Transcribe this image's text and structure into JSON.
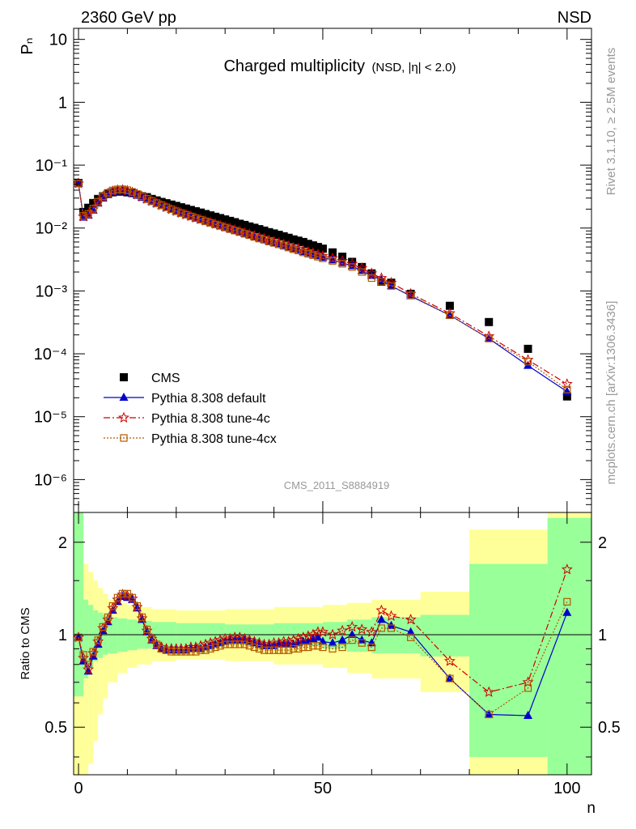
{
  "header": {
    "left": "2360 GeV pp",
    "right": "NSD",
    "title_main": "Charged multiplicity",
    "title_sub": "(NSD, |η| < 2.0)",
    "side_top": "Rivet 3.1.10, ≥ 2.5M events",
    "side_bottom": "mcplots.cern.ch [arXiv:1306.3436]",
    "watermark": "CMS_2011_S8884919"
  },
  "chart_data": [
    {
      "type": "scatter",
      "panel": "main",
      "ylabel": "Pₙ",
      "yscale": "log",
      "ylim": [
        3e-07,
        15
      ],
      "xlim": [
        -1,
        105
      ],
      "y_tick_labels": [
        "10",
        "1",
        "10⁻¹",
        "10⁻²",
        "10⁻³",
        "10⁻⁴",
        "10⁻⁵",
        "10⁻⁶"
      ],
      "legend_position": "bottom-left",
      "series": [
        {
          "name": "CMS",
          "color": "#000000",
          "marker": "square",
          "x": [
            0,
            1,
            2,
            3,
            4,
            5,
            6,
            7,
            8,
            9,
            10,
            11,
            12,
            13,
            14,
            15,
            16,
            17,
            18,
            19,
            20,
            21,
            22,
            23,
            24,
            25,
            26,
            27,
            28,
            29,
            30,
            31,
            32,
            33,
            34,
            35,
            36,
            37,
            38,
            39,
            40,
            41,
            42,
            43,
            44,
            45,
            46,
            47,
            48,
            49,
            50,
            52,
            54,
            56,
            58,
            60,
            62,
            64,
            68,
            76,
            84,
            92,
            100
          ],
          "y": [
            0.052,
            0.018,
            0.021,
            0.025,
            0.029,
            0.032,
            0.035,
            0.037,
            0.038,
            0.038,
            0.037,
            0.036,
            0.034,
            0.032,
            0.031,
            0.029,
            0.0275,
            0.026,
            0.0248,
            0.0236,
            0.0225,
            0.0214,
            0.0204,
            0.0194,
            0.0185,
            0.0176,
            0.0167,
            0.0159,
            0.0151,
            0.0144,
            0.0137,
            0.013,
            0.0124,
            0.0117,
            0.0112,
            0.0106,
            0.0101,
            0.0096,
            0.0091,
            0.0086,
            0.0082,
            0.0078,
            0.0074,
            0.007,
            0.0066,
            0.0063,
            0.006,
            0.0056,
            0.0053,
            0.005,
            0.0047,
            0.0041,
            0.0035,
            0.0029,
            0.0024,
            0.0019,
            0.0014,
            0.00135,
            0.0009,
            0.00058,
            0.00032,
            0.00012,
            2.1e-05
          ]
        },
        {
          "name": "Pythia 8.308 default",
          "color": "#0000cc",
          "marker": "triangle",
          "line": "solid",
          "x": [
            0,
            1,
            2,
            3,
            4,
            5,
            6,
            7,
            8,
            9,
            10,
            11,
            12,
            13,
            14,
            15,
            16,
            17,
            18,
            19,
            20,
            21,
            22,
            23,
            24,
            25,
            26,
            27,
            28,
            29,
            30,
            31,
            32,
            33,
            34,
            35,
            36,
            37,
            38,
            39,
            40,
            41,
            42,
            43,
            44,
            45,
            46,
            47,
            48,
            49,
            50,
            52,
            54,
            56,
            58,
            60,
            62,
            64,
            68,
            76,
            84,
            92,
            100
          ],
          "y": [
            0.051,
            0.0148,
            0.016,
            0.0192,
            0.0248,
            0.0298,
            0.0338,
            0.0368,
            0.0384,
            0.0388,
            0.0378,
            0.0358,
            0.0332,
            0.0305,
            0.0283,
            0.0262,
            0.0243,
            0.0226,
            0.021,
            0.0196,
            0.0183,
            0.0171,
            0.0161,
            0.0152,
            0.0143,
            0.0135,
            0.0128,
            0.0121,
            0.0114,
            0.0108,
            0.0102,
            0.0097,
            0.0092,
            0.0087,
            0.0082,
            0.0078,
            0.0073,
            0.0069,
            0.0066,
            0.0062,
            0.0059,
            0.0056,
            0.0053,
            0.005,
            0.0047,
            0.0045,
            0.0042,
            0.004,
            0.0038,
            0.0036,
            0.0034,
            0.0031,
            0.0028,
            0.0025,
            0.0021,
            0.00175,
            0.0015,
            0.0012,
            0.00083,
            0.00041,
            0.000175,
            6.5e-05,
            2.5e-05
          ]
        },
        {
          "name": "Pythia 8.308 tune-4c",
          "color": "#cc0000",
          "marker": "star",
          "line": "dashdot",
          "x": [
            0,
            1,
            2,
            3,
            4,
            5,
            6,
            7,
            8,
            9,
            10,
            11,
            12,
            13,
            14,
            15,
            16,
            17,
            18,
            19,
            20,
            21,
            22,
            23,
            24,
            25,
            26,
            27,
            28,
            29,
            30,
            31,
            32,
            33,
            34,
            35,
            36,
            37,
            38,
            39,
            40,
            41,
            42,
            43,
            44,
            45,
            46,
            47,
            48,
            49,
            50,
            52,
            54,
            56,
            58,
            60,
            62,
            64,
            68,
            76,
            84,
            92,
            100
          ],
          "y": [
            0.051,
            0.0152,
            0.0165,
            0.0198,
            0.0258,
            0.0312,
            0.0356,
            0.0385,
            0.0401,
            0.0404,
            0.0392,
            0.0369,
            0.0343,
            0.0314,
            0.029,
            0.0268,
            0.0248,
            0.023,
            0.0213,
            0.0198,
            0.0185,
            0.0173,
            0.0163,
            0.0154,
            0.0145,
            0.0137,
            0.013,
            0.0123,
            0.0116,
            0.011,
            0.0104,
            0.0099,
            0.0094,
            0.0089,
            0.0084,
            0.008,
            0.0075,
            0.0071,
            0.0068,
            0.0064,
            0.0061,
            0.0058,
            0.0055,
            0.0052,
            0.0049,
            0.0047,
            0.0044,
            0.0042,
            0.004,
            0.0038,
            0.0036,
            0.0033,
            0.003,
            0.0027,
            0.0023,
            0.0019,
            0.0016,
            0.00135,
            0.0009,
            0.00044,
            0.00019,
            8e-05,
            3.3e-05
          ]
        },
        {
          "name": "Pythia 8.308 tune-4cx",
          "color": "#b35900",
          "marker": "open-square",
          "line": "dotted",
          "x": [
            0,
            1,
            2,
            3,
            4,
            5,
            6,
            7,
            8,
            9,
            10,
            11,
            12,
            13,
            14,
            15,
            16,
            17,
            18,
            19,
            20,
            21,
            22,
            23,
            24,
            25,
            26,
            27,
            28,
            29,
            30,
            31,
            32,
            33,
            34,
            35,
            36,
            37,
            38,
            39,
            40,
            41,
            42,
            43,
            44,
            45,
            46,
            47,
            48,
            49,
            50,
            52,
            54,
            56,
            58,
            60,
            62,
            64,
            68,
            76,
            84,
            92,
            100
          ],
          "y": [
            0.051,
            0.0156,
            0.0168,
            0.0203,
            0.0262,
            0.0318,
            0.0364,
            0.0396,
            0.0412,
            0.0414,
            0.04,
            0.0376,
            0.0347,
            0.0318,
            0.0292,
            0.027,
            0.0249,
            0.0231,
            0.0214,
            0.0199,
            0.0185,
            0.0173,
            0.0163,
            0.0153,
            0.0144,
            0.0136,
            0.0128,
            0.0121,
            0.0114,
            0.0108,
            0.0102,
            0.0096,
            0.0091,
            0.0086,
            0.0081,
            0.0077,
            0.0072,
            0.0068,
            0.0065,
            0.0061,
            0.0058,
            0.0055,
            0.0052,
            0.0049,
            0.0046,
            0.0044,
            0.0041,
            0.0039,
            0.0037,
            0.0035,
            0.0033,
            0.003,
            0.0027,
            0.0024,
            0.002,
            0.0016,
            0.0014,
            0.0012,
            0.00085,
            0.00041,
            0.000175,
            7.5e-05,
            2.7e-05
          ]
        }
      ]
    },
    {
      "type": "scatter",
      "panel": "ratio",
      "xlabel": "n",
      "ylabel": "Ratio to CMS",
      "yscale": "log",
      "ylim": [
        0.35,
        2.5
      ],
      "xlim": [
        -1,
        105
      ],
      "x_tick_labels": [
        "0",
        "50",
        "100"
      ],
      "y_tick_labels": [
        "0.5",
        "1",
        "2"
      ],
      "uncertainty_bands": {
        "color_inner": "#99ff99",
        "color_outer": "#ffff99",
        "x_edges": [
          -1,
          1,
          2,
          3,
          4,
          5,
          6,
          8,
          10,
          12,
          15,
          20,
          30,
          40,
          50,
          55,
          60,
          70,
          80,
          96,
          105
        ],
        "inner_lo": [
          0.63,
          0.72,
          0.78,
          0.82,
          0.84,
          0.86,
          0.87,
          0.88,
          0.89,
          0.9,
          0.91,
          0.92,
          0.93,
          0.92,
          0.9,
          0.88,
          0.87,
          0.85,
          0.4,
          0.3
        ],
        "inner_hi": [
          2.6,
          1.3,
          1.25,
          1.2,
          1.18,
          1.16,
          1.14,
          1.13,
          1.12,
          1.11,
          1.1,
          1.09,
          1.08,
          1.09,
          1.1,
          1.12,
          1.14,
          1.16,
          1.7,
          2.4
        ],
        "outer_lo": [
          0.35,
          0.35,
          0.38,
          0.45,
          0.55,
          0.62,
          0.7,
          0.75,
          0.78,
          0.8,
          0.82,
          0.83,
          0.82,
          0.8,
          0.78,
          0.75,
          0.72,
          0.65,
          0.35,
          0.3
        ],
        "outer_hi": [
          2.6,
          1.7,
          1.6,
          1.5,
          1.42,
          1.36,
          1.3,
          1.27,
          1.25,
          1.23,
          1.21,
          1.2,
          1.21,
          1.23,
          1.25,
          1.27,
          1.3,
          1.38,
          2.2,
          2.6
        ]
      },
      "series": [
        {
          "name": "Pythia 8.308 default",
          "color": "#0000cc",
          "marker": "triangle",
          "line": "solid",
          "x": [
            0,
            1,
            2,
            3,
            4,
            5,
            6,
            7,
            8,
            9,
            10,
            11,
            12,
            13,
            14,
            15,
            16,
            17,
            18,
            19,
            20,
            21,
            22,
            23,
            24,
            25,
            26,
            27,
            28,
            29,
            30,
            31,
            32,
            33,
            34,
            35,
            36,
            37,
            38,
            39,
            40,
            41,
            42,
            43,
            44,
            45,
            46,
            47,
            48,
            49,
            50,
            52,
            54,
            56,
            58,
            60,
            62,
            64,
            68,
            76,
            84,
            92,
            100
          ],
          "y": [
            0.98,
            0.82,
            0.76,
            0.85,
            0.93,
            1.03,
            1.1,
            1.2,
            1.28,
            1.33,
            1.32,
            1.3,
            1.22,
            1.12,
            1.02,
            0.96,
            0.92,
            0.9,
            0.89,
            0.89,
            0.89,
            0.89,
            0.89,
            0.9,
            0.9,
            0.9,
            0.91,
            0.92,
            0.93,
            0.94,
            0.95,
            0.96,
            0.96,
            0.96,
            0.96,
            0.95,
            0.94,
            0.93,
            0.92,
            0.92,
            0.92,
            0.93,
            0.93,
            0.93,
            0.93,
            0.94,
            0.95,
            0.95,
            0.97,
            0.98,
            0.95,
            0.94,
            0.96,
            1.0,
            0.96,
            0.94,
            1.12,
            1.07,
            1.02,
            0.72,
            0.55,
            0.545,
            1.18
          ]
        },
        {
          "name": "Pythia 8.308 tune-4c",
          "color": "#cc0000",
          "marker": "star",
          "line": "dashdot",
          "x": [
            0,
            1,
            2,
            3,
            4,
            5,
            6,
            7,
            8,
            9,
            10,
            11,
            12,
            13,
            14,
            15,
            16,
            17,
            18,
            19,
            20,
            21,
            22,
            23,
            24,
            25,
            26,
            27,
            28,
            29,
            30,
            31,
            32,
            33,
            34,
            35,
            36,
            37,
            38,
            39,
            40,
            41,
            42,
            43,
            44,
            45,
            46,
            47,
            48,
            49,
            50,
            52,
            54,
            56,
            58,
            60,
            62,
            64,
            68,
            76,
            84,
            92,
            100
          ],
          "y": [
            0.98,
            0.84,
            0.77,
            0.87,
            0.95,
            1.05,
            1.12,
            1.22,
            1.3,
            1.35,
            1.34,
            1.31,
            1.23,
            1.13,
            1.03,
            0.97,
            0.93,
            0.91,
            0.9,
            0.9,
            0.9,
            0.9,
            0.9,
            0.91,
            0.91,
            0.92,
            0.93,
            0.94,
            0.95,
            0.96,
            0.97,
            0.97,
            0.98,
            0.98,
            0.97,
            0.96,
            0.95,
            0.94,
            0.93,
            0.93,
            0.94,
            0.94,
            0.95,
            0.95,
            0.96,
            0.97,
            0.98,
            0.99,
            1.0,
            1.02,
            1.02,
            1.0,
            1.03,
            1.06,
            1.04,
            1.02,
            1.2,
            1.15,
            1.12,
            0.82,
            0.65,
            0.7,
            1.63
          ]
        },
        {
          "name": "Pythia 8.308 tune-4cx",
          "color": "#b35900",
          "marker": "open-square",
          "line": "dotted",
          "x": [
            0,
            1,
            2,
            3,
            4,
            5,
            6,
            7,
            8,
            9,
            10,
            11,
            12,
            13,
            14,
            15,
            16,
            17,
            18,
            19,
            20,
            21,
            22,
            23,
            24,
            25,
            26,
            27,
            28,
            29,
            30,
            31,
            32,
            33,
            34,
            35,
            36,
            37,
            38,
            39,
            40,
            41,
            42,
            43,
            44,
            45,
            46,
            47,
            48,
            49,
            50,
            52,
            54,
            56,
            58,
            60,
            62,
            64,
            68,
            76,
            84,
            92,
            100
          ],
          "y": [
            0.98,
            0.86,
            0.8,
            0.88,
            0.96,
            1.06,
            1.14,
            1.24,
            1.32,
            1.36,
            1.36,
            1.32,
            1.24,
            1.14,
            1.04,
            0.97,
            0.93,
            0.9,
            0.89,
            0.88,
            0.88,
            0.88,
            0.88,
            0.88,
            0.88,
            0.89,
            0.89,
            0.9,
            0.91,
            0.92,
            0.93,
            0.93,
            0.93,
            0.93,
            0.93,
            0.92,
            0.91,
            0.9,
            0.89,
            0.89,
            0.89,
            0.89,
            0.89,
            0.89,
            0.9,
            0.9,
            0.91,
            0.91,
            0.92,
            0.92,
            0.91,
            0.9,
            0.91,
            0.96,
            0.94,
            0.91,
            1.05,
            1.05,
            0.98,
            0.72,
            0.55,
            0.67,
            1.28
          ]
        }
      ]
    }
  ]
}
